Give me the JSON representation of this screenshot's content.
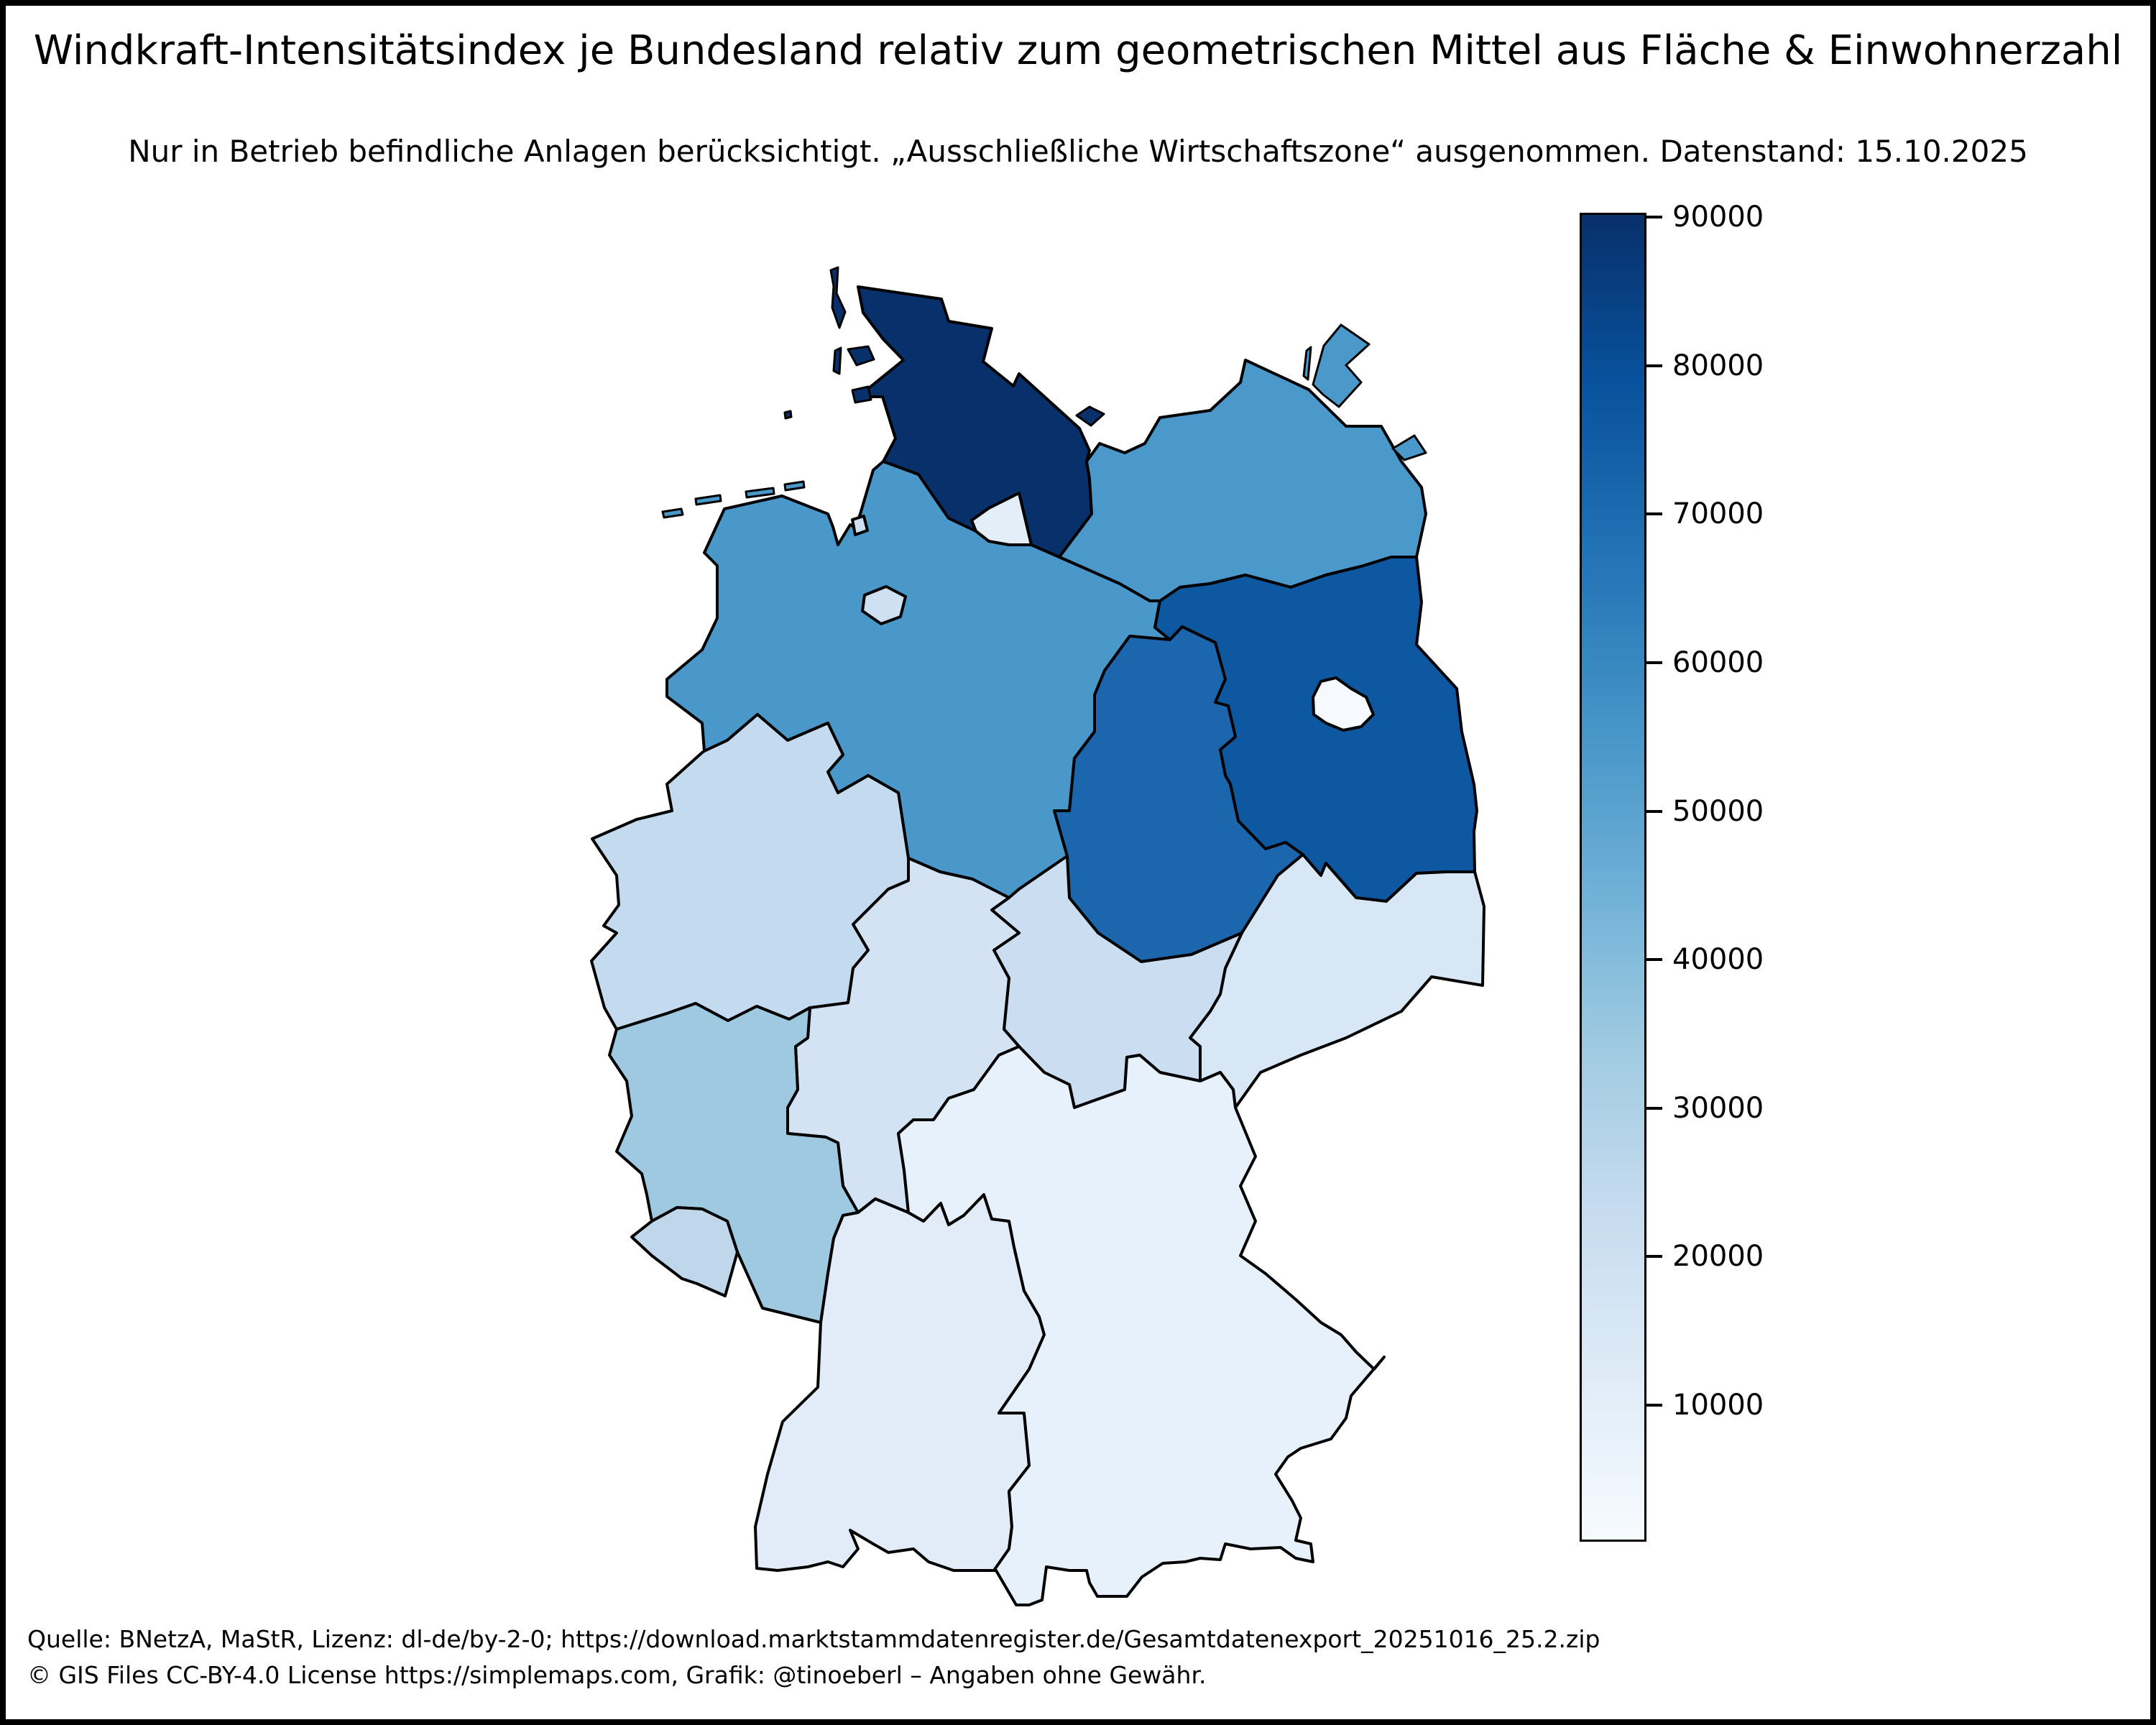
{
  "header": {
    "title": "Windkraft-Intensitätsindex je Bundesland relativ zum geometrischen Mittel aus Fläche & Einwohnerzahl",
    "subtitle": "Nur in Betrieb befindliche Anlagen berücksichtigt. „Ausschließliche Wirtschaftszone“ ausgenommen. Datenstand: 15.10.2025"
  },
  "footer": {
    "line1": "Quelle: BNetzA, MaStR, Lizenz: dl-de/by-2-0; https://download.marktstammdatenregister.de/Gesamtdatenexport_20251016_25.2.zip",
    "line2": "© GIS Files CC-BY-4.0 License https://simplemaps.com, Grafik: @tinoeberl – Angaben ohne Gewähr."
  },
  "colorbar": {
    "ticks": [
      90000,
      80000,
      70000,
      60000,
      50000,
      40000,
      30000,
      20000,
      10000
    ],
    "vmin": 800,
    "vmax": 90300,
    "cmap_stops": [
      "#08306b",
      "#08519c",
      "#2171b5",
      "#4292c6",
      "#6baed6",
      "#9ecae1",
      "#c6dbef",
      "#deebf7",
      "#f7fbff"
    ]
  },
  "chart_data": {
    "type": "choropleth",
    "region": "Germany federal states (Bundesländer)",
    "title": "Windkraft-Intensitätsindex je Bundesland relativ zum geometrischen Mittel aus Fläche & Einwohnerzahl",
    "value_name": "Windkraft-Intensitätsindex",
    "colormap": "Blues",
    "legend_position": "right vertical colorbar",
    "scale": {
      "min": 800,
      "max": 90300,
      "tick_step": 10000
    },
    "states": [
      {
        "id": "SH",
        "name": "Schleswig-Holstein",
        "value_estimate": 90000,
        "color": "#08306b"
      },
      {
        "id": "BB",
        "name": "Brandenburg",
        "value_estimate": 77000,
        "color": "#0e58a2"
      },
      {
        "id": "ST",
        "name": "Sachsen-Anhalt",
        "value_estimate": 70000,
        "color": "#1c66ae"
      },
      {
        "id": "NI",
        "name": "Niedersachsen",
        "value_estimate": 52000,
        "color": "#4a97ca"
      },
      {
        "id": "MV",
        "name": "Mecklenburg-Vorpommern",
        "value_estimate": 51000,
        "color": "#4b98cb"
      },
      {
        "id": "RP",
        "name": "Rheinland-Pfalz",
        "value_estimate": 34000,
        "color": "#9fc9e1"
      },
      {
        "id": "SL",
        "name": "Saarland",
        "value_estimate": 26000,
        "color": "#c0d6ea"
      },
      {
        "id": "NW",
        "name": "Nordrhein-Westfalen",
        "value_estimate": 24000,
        "color": "#c4daee"
      },
      {
        "id": "TH",
        "name": "Thüringen",
        "value_estimate": 21000,
        "color": "#cbdef1"
      },
      {
        "id": "HB",
        "name": "Bremen",
        "value_estimate": 19000,
        "color": "#cfe0f2"
      },
      {
        "id": "HE",
        "name": "Hessen",
        "value_estimate": 17000,
        "color": "#d3e3f3"
      },
      {
        "id": "SN",
        "name": "Sachsen",
        "value_estimate": 15000,
        "color": "#d8e7f5"
      },
      {
        "id": "BW",
        "name": "Baden-Württemberg",
        "value_estimate": 9000,
        "color": "#e1ecf8"
      },
      {
        "id": "HH",
        "name": "Hamburg",
        "value_estimate": 8000,
        "color": "#e4eef9"
      },
      {
        "id": "BY",
        "name": "Bayern",
        "value_estimate": 6000,
        "color": "#e7f1fb"
      },
      {
        "id": "BE",
        "name": "Berlin",
        "value_estimate": 1000,
        "color": "#f6fafe"
      }
    ]
  }
}
